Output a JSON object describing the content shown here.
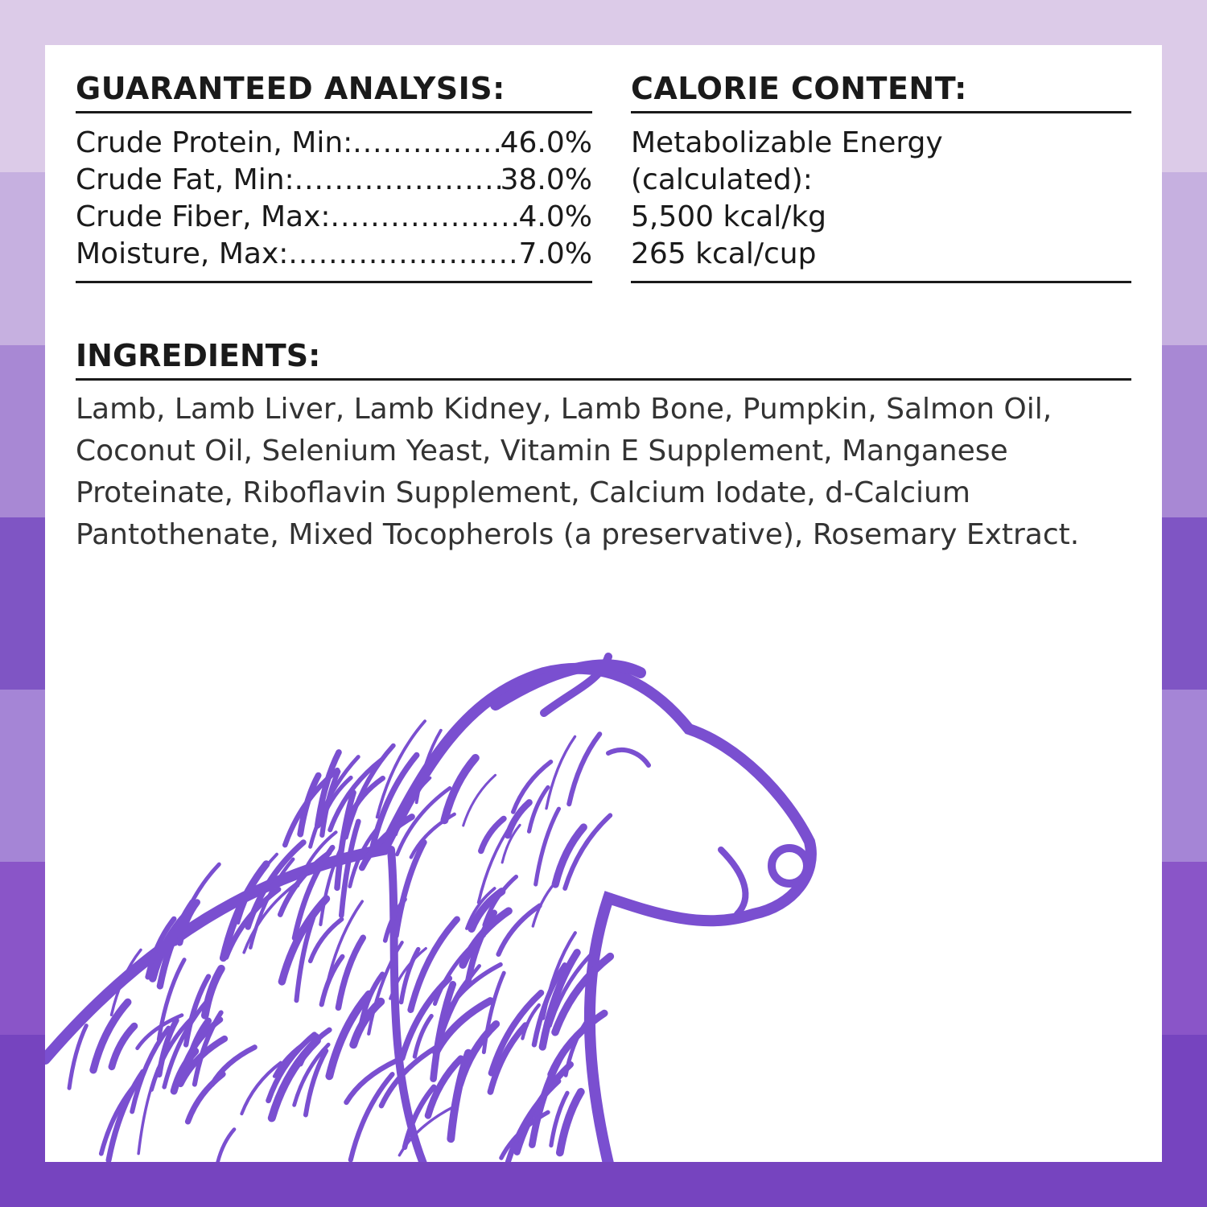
{
  "colors": {
    "stripes": [
      "#dccbe8",
      "#c6b0e0",
      "#a888d4",
      "#7f55c4",
      "#a585d6",
      "#8a55c8",
      "#7644bf"
    ],
    "illustration": "#7a4fd0",
    "text": "#1a1a1a"
  },
  "guaranteed_analysis": {
    "title": "GUARANTEED ANALYSIS:",
    "rows": [
      {
        "label": "Crude Protein, Min:",
        "value": "46.0%"
      },
      {
        "label": "Crude Fat, Min:",
        "value": "38.0%"
      },
      {
        "label": "Crude Fiber, Max:",
        "value": "4.0%"
      },
      {
        "label": "Moisture, Max:",
        "value": "7.0%"
      }
    ]
  },
  "calorie_content": {
    "title": "CALORIE CONTENT:",
    "lines": [
      "Metabolizable Energy",
      "(calculated):",
      "5,500 kcal/kg",
      "265 kcal/cup"
    ]
  },
  "ingredients": {
    "title": "INGREDIENTS:",
    "text": "Lamb, Lamb Liver, Lamb Kidney, Lamb Bone, Pumpkin, Salmon Oil, Coconut Oil, Selenium Yeast, Vitamin E Supplement, Manganese Proteinate, Riboflavin Supplement, Calcium Iodate, d-Calcium Pantothenate, Mixed Tocopherols (a preservative), Rosemary Extract."
  },
  "illustration": {
    "icon": "lamb-illustration"
  }
}
